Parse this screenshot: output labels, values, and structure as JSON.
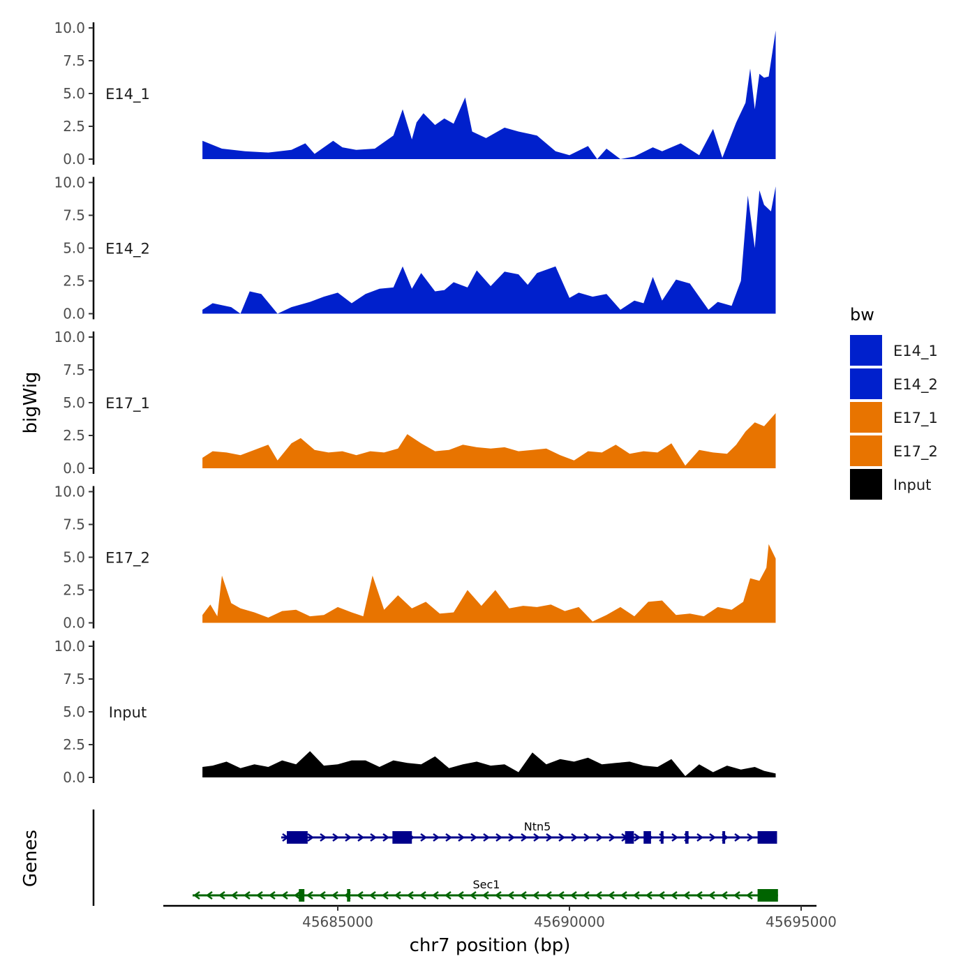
{
  "chart_data": {
    "type": "area",
    "title": "",
    "xlabel": "chr7 position (bp)",
    "ylabel": "bigWig",
    "genes_label": "Genes",
    "ylim": [
      0,
      10
    ],
    "y_ticks": [
      "10.0",
      "7.5",
      "5.0",
      "2.5",
      "0.0"
    ],
    "x_ticks": [
      "45685000",
      "45690000",
      "45695000"
    ],
    "x_tick_values": [
      45685000,
      45690000,
      45695000
    ],
    "x_range": [
      45681500,
      45695500
    ],
    "legend": {
      "title": "bw",
      "entries": [
        {
          "label": "E14_1",
          "color": "#0020CC"
        },
        {
          "label": "E14_2",
          "color": "#0020CC"
        },
        {
          "label": "E17_1",
          "color": "#E87400"
        },
        {
          "label": "E17_2",
          "color": "#E87400"
        },
        {
          "label": "Input",
          "color": "#000000"
        }
      ]
    },
    "series": [
      {
        "name": "E14_1",
        "color": "#0020CC",
        "x": [
          45682080,
          45682500,
          45683000,
          45683500,
          45684000,
          45684300,
          45684500,
          45684900,
          45685100,
          45685400,
          45685800,
          45686200,
          45686400,
          45686600,
          45686700,
          45686850,
          45687100,
          45687300,
          45687500,
          45687750,
          45687900,
          45688200,
          45688600,
          45688900,
          45689300,
          45689700,
          45690000,
          45690400,
          45690600,
          45690800,
          45691100,
          45691400,
          45691800,
          45692000,
          45692400,
          45692800,
          45693100,
          45693300,
          45693600,
          45693800,
          45693900,
          45694000,
          45694100,
          45694200,
          45694300,
          45694450
        ],
        "values": [
          1.4,
          0.8,
          0.6,
          0.5,
          0.7,
          1.2,
          0.4,
          1.4,
          0.9,
          0.7,
          0.8,
          1.8,
          3.8,
          1.5,
          2.8,
          3.5,
          2.6,
          3.1,
          2.7,
          4.7,
          2.1,
          1.6,
          2.4,
          2.1,
          1.8,
          0.6,
          0.3,
          1.0,
          0,
          0.8,
          0,
          0.2,
          0.9,
          0.6,
          1.2,
          0.3,
          2.3,
          0.1,
          2.8,
          4.3,
          6.9,
          3.8,
          6.5,
          6.2,
          6.3,
          9.8
        ]
      },
      {
        "name": "E14_2",
        "color": "#0020CC",
        "x": [
          45682080,
          45682300,
          45682700,
          45682900,
          45683100,
          45683350,
          45683700,
          45684000,
          45684400,
          45684700,
          45685000,
          45685300,
          45685600,
          45685900,
          45686200,
          45686400,
          45686600,
          45686800,
          45687100,
          45687300,
          45687500,
          45687800,
          45688000,
          45688300,
          45688600,
          45688900,
          45689100,
          45689300,
          45689700,
          45690000,
          45690200,
          45690500,
          45690800,
          45691100,
          45691400,
          45691600,
          45691800,
          45692000,
          45692300,
          45692600,
          45692800,
          45693000,
          45693200,
          45693500,
          45693700,
          45693850,
          45694000,
          45694100,
          45694200,
          45694350,
          45694450
        ],
        "values": [
          0.3,
          0.8,
          0.5,
          0,
          1.7,
          1.5,
          0,
          0.5,
          0.9,
          1.3,
          1.6,
          0.8,
          1.5,
          1.9,
          2.0,
          3.6,
          1.9,
          3.1,
          1.7,
          1.8,
          2.4,
          2.0,
          3.3,
          2.1,
          3.2,
          3.0,
          2.2,
          3.1,
          3.6,
          1.2,
          1.6,
          1.3,
          1.5,
          0.3,
          1.0,
          0.8,
          2.8,
          1.0,
          2.6,
          2.3,
          1.3,
          0.3,
          0.9,
          0.6,
          2.5,
          9.0,
          5.0,
          9.4,
          8.3,
          7.8,
          9.7
        ]
      },
      {
        "name": "E17_1",
        "color": "#E87400",
        "x": [
          45682080,
          45682300,
          45682600,
          45682900,
          45683200,
          45683500,
          45683700,
          45684000,
          45684200,
          45684500,
          45684800,
          45685100,
          45685400,
          45685700,
          45686000,
          45686300,
          45686500,
          45686800,
          45687100,
          45687400,
          45687700,
          45688000,
          45688300,
          45688600,
          45688900,
          45689200,
          45689500,
          45689800,
          45690100,
          45690400,
          45690700,
          45691000,
          45691300,
          45691600,
          45691900,
          45692200,
          45692500,
          45692800,
          45693100,
          45693400,
          45693600,
          45693800,
          45694000,
          45694200,
          45694450
        ],
        "values": [
          0.8,
          1.3,
          1.2,
          1.0,
          1.4,
          1.8,
          0.6,
          1.9,
          2.3,
          1.4,
          1.2,
          1.3,
          1.0,
          1.3,
          1.2,
          1.5,
          2.6,
          1.9,
          1.3,
          1.4,
          1.8,
          1.6,
          1.5,
          1.6,
          1.3,
          1.4,
          1.5,
          1.0,
          0.6,
          1.3,
          1.2,
          1.8,
          1.1,
          1.3,
          1.2,
          1.9,
          0.2,
          1.4,
          1.2,
          1.1,
          1.8,
          2.8,
          3.5,
          3.2,
          4.2
        ]
      },
      {
        "name": "E17_2",
        "color": "#E87400",
        "x": [
          45682080,
          45682250,
          45682400,
          45682500,
          45682700,
          45682900,
          45683200,
          45683500,
          45683800,
          45684100,
          45684400,
          45684700,
          45685000,
          45685300,
          45685550,
          45685750,
          45686000,
          45686300,
          45686600,
          45686900,
          45687200,
          45687500,
          45687800,
          45688100,
          45688400,
          45688700,
          45689000,
          45689300,
          45689600,
          45689900,
          45690200,
          45690500,
          45690800,
          45691100,
          45691400,
          45691700,
          45692000,
          45692300,
          45692600,
          45692900,
          45693200,
          45693500,
          45693750,
          45693900,
          45694100,
          45694250,
          45694300,
          45694450
        ],
        "values": [
          0.6,
          1.4,
          0.5,
          3.6,
          1.5,
          1.1,
          0.8,
          0.4,
          0.9,
          1.0,
          0.5,
          0.6,
          1.2,
          0.8,
          0.5,
          3.6,
          1.0,
          2.1,
          1.1,
          1.6,
          0.7,
          0.8,
          2.5,
          1.3,
          2.5,
          1.1,
          1.3,
          1.2,
          1.4,
          0.9,
          1.2,
          0.1,
          0.6,
          1.2,
          0.5,
          1.6,
          1.7,
          0.6,
          0.7,
          0.5,
          1.2,
          1.0,
          1.6,
          3.4,
          3.2,
          4.2,
          6.0,
          4.9
        ]
      },
      {
        "name": "Input",
        "color": "#000000",
        "x": [
          45682080,
          45682300,
          45682600,
          45682900,
          45683200,
          45683500,
          45683800,
          45684100,
          45684400,
          45684700,
          45685000,
          45685300,
          45685600,
          45685900,
          45686200,
          45686500,
          45686800,
          45687100,
          45687400,
          45687700,
          45688000,
          45688300,
          45688600,
          45688900,
          45689200,
          45689500,
          45689800,
          45690100,
          45690400,
          45690700,
          45691000,
          45691300,
          45691600,
          45691900,
          45692200,
          45692500,
          45692800,
          45693100,
          45693400,
          45693700,
          45694000,
          45694200,
          45694450
        ],
        "values": [
          0.8,
          0.9,
          1.2,
          0.7,
          1.0,
          0.8,
          1.3,
          1.0,
          2.0,
          0.9,
          1.0,
          1.3,
          1.3,
          0.8,
          1.3,
          1.1,
          1.0,
          1.6,
          0.7,
          1.0,
          1.2,
          0.9,
          1.0,
          0.4,
          1.9,
          1.0,
          1.4,
          1.2,
          1.5,
          1.0,
          1.1,
          1.2,
          0.9,
          0.8,
          1.4,
          0.1,
          1.0,
          0.4,
          0.9,
          0.6,
          0.8,
          0.5,
          0.3
        ]
      }
    ],
    "gene_tracks": [
      {
        "name": "Ntn5",
        "strand": "+",
        "color": "#00008B",
        "start": 45683780,
        "end": 45694480,
        "exons": [
          [
            45683900,
            45684350
          ],
          [
            45686180,
            45686600
          ],
          [
            45691200,
            45691390
          ],
          [
            45691600,
            45691760
          ],
          [
            45691970,
            45692030
          ],
          [
            45692500,
            45692570
          ],
          [
            45693300,
            45693350
          ],
          [
            45694060,
            45694480
          ]
        ]
      },
      {
        "name": "Sec1",
        "strand": "-",
        "color": "#006400",
        "start": 45681500,
        "end": 45694500,
        "exons": [
          [
            45684160,
            45684280
          ],
          [
            45685200,
            45685270
          ],
          [
            45694060,
            45694500
          ]
        ]
      }
    ]
  }
}
